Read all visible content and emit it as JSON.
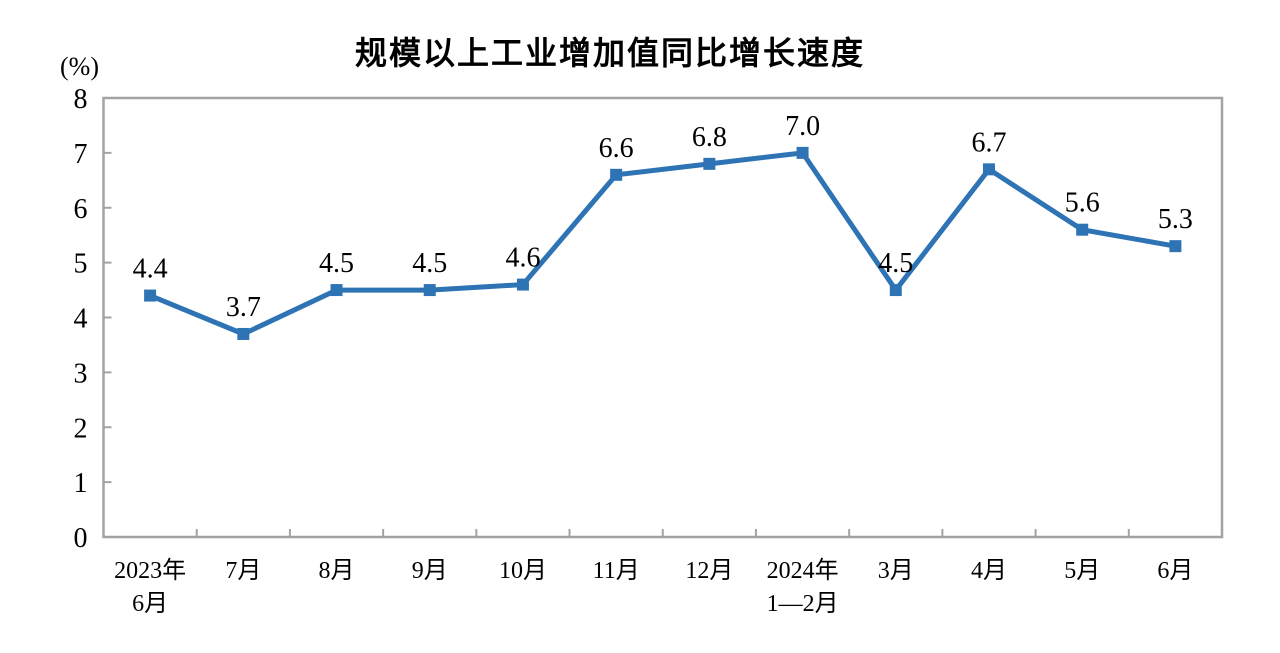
{
  "chart_data": {
    "type": "line",
    "title": "规模以上工业增加值同比增长速度",
    "unit_label": "(%)",
    "categories": [
      "2023年\n6月",
      "7月",
      "8月",
      "9月",
      "10月",
      "11月",
      "12月",
      "2024年\n1—2月",
      "3月",
      "4月",
      "5月",
      "6月"
    ],
    "values": [
      4.4,
      3.7,
      4.5,
      4.5,
      4.6,
      6.6,
      6.8,
      7.0,
      4.5,
      6.7,
      5.6,
      5.3
    ],
    "data_labels": [
      "4.4",
      "3.7",
      "4.5",
      "4.5",
      "4.6",
      "6.6",
      "6.8",
      "7.0",
      "4.5",
      "6.7",
      "5.6",
      "5.3"
    ],
    "xlabel": "",
    "ylabel": "(%)",
    "ylim": [
      0,
      8
    ],
    "y_ticks": [
      0,
      1,
      2,
      3,
      4,
      5,
      6,
      7,
      8
    ],
    "grid": false,
    "legend": "none",
    "series_color": "#2E74B5",
    "axis_color": "#A3A3A3",
    "marker": "square"
  }
}
